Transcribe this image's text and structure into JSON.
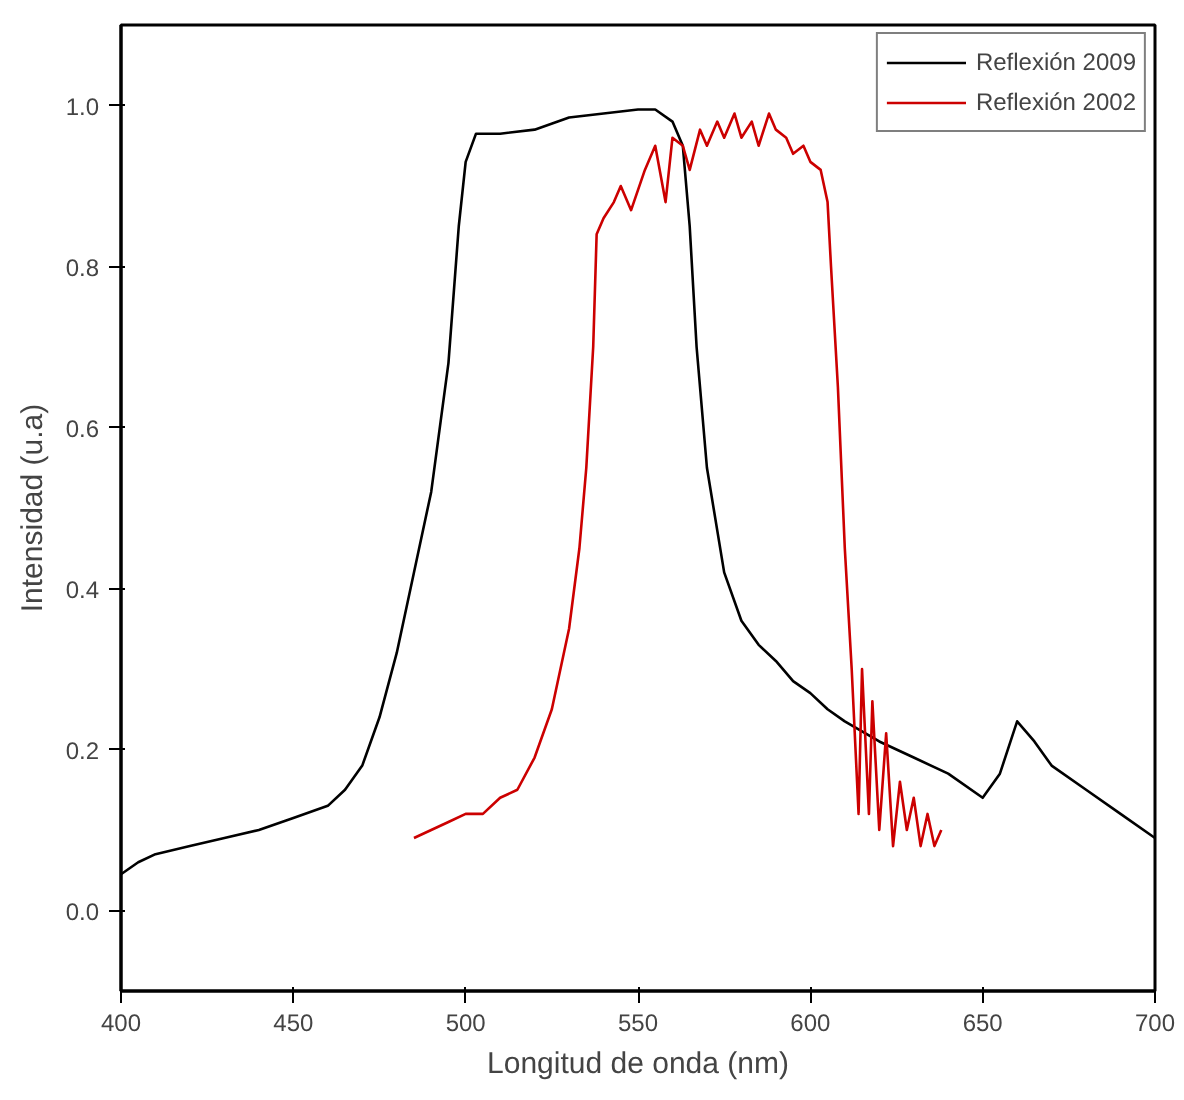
{
  "chart_data": {
    "type": "line",
    "xlabel": "Longitud de onda (nm)",
    "ylabel": "Intensidad (u.a)",
    "xlim": [
      400,
      700
    ],
    "ylim": [
      -0.1,
      1.1
    ],
    "xticks": [
      400,
      450,
      500,
      550,
      600,
      650,
      700
    ],
    "yticks": [
      {
        "value": 0,
        "label": "0.0"
      },
      {
        "value": 0.2,
        "label": "0.2"
      },
      {
        "value": 0.4,
        "label": "0.4"
      },
      {
        "value": 0.6,
        "label": "0.6"
      },
      {
        "value": 0.8,
        "label": "0.8"
      },
      {
        "value": 1,
        "label": "1.0"
      }
    ],
    "grid": false,
    "legend": "top right",
    "line_style": "solid",
    "marker": "none",
    "series": [
      {
        "name": "Reflexión 2009",
        "color": "#000000",
        "x": [
          400,
          405,
          410,
          420,
          430,
          440,
          450,
          460,
          465,
          470,
          475,
          480,
          485,
          490,
          495,
          498,
          500,
          503,
          510,
          520,
          530,
          540,
          550,
          555,
          560,
          563,
          565,
          567,
          570,
          575,
          580,
          585,
          590,
          595,
          600,
          605,
          610,
          620,
          630,
          640,
          650,
          655,
          660,
          665,
          670,
          680,
          690,
          700
        ],
        "values": [
          0.045,
          0.06,
          0.07,
          0.08,
          0.09,
          0.1,
          0.115,
          0.13,
          0.15,
          0.18,
          0.24,
          0.32,
          0.42,
          0.52,
          0.68,
          0.85,
          0.93,
          0.965,
          0.965,
          0.97,
          0.985,
          0.99,
          0.995,
          0.995,
          0.98,
          0.95,
          0.85,
          0.7,
          0.55,
          0.42,
          0.36,
          0.33,
          0.31,
          0.285,
          0.27,
          0.25,
          0.235,
          0.21,
          0.19,
          0.17,
          0.14,
          0.17,
          0.235,
          0.21,
          0.18,
          0.15,
          0.12,
          0.09
        ]
      },
      {
        "name": "Reflexión 2002",
        "color": "#cc0000",
        "x": [
          485,
          490,
          495,
          500,
          505,
          510,
          515,
          520,
          525,
          530,
          533,
          535,
          537,
          538,
          540,
          543,
          545,
          548,
          552,
          555,
          558,
          560,
          563,
          565,
          568,
          570,
          573,
          575,
          578,
          580,
          583,
          585,
          588,
          590,
          593,
          595,
          598,
          600,
          603,
          605,
          606,
          608,
          610,
          612,
          614,
          615,
          617,
          618,
          620,
          622,
          624,
          626,
          628,
          630,
          632,
          634,
          636,
          638
        ],
        "values": [
          0.09,
          0.1,
          0.11,
          0.12,
          0.12,
          0.14,
          0.15,
          0.19,
          0.25,
          0.35,
          0.45,
          0.55,
          0.7,
          0.84,
          0.86,
          0.88,
          0.9,
          0.87,
          0.92,
          0.95,
          0.88,
          0.96,
          0.95,
          0.92,
          0.97,
          0.95,
          0.98,
          0.96,
          0.99,
          0.96,
          0.98,
          0.95,
          0.99,
          0.97,
          0.96,
          0.94,
          0.95,
          0.93,
          0.92,
          0.88,
          0.8,
          0.65,
          0.45,
          0.3,
          0.12,
          0.3,
          0.12,
          0.26,
          0.1,
          0.22,
          0.08,
          0.16,
          0.1,
          0.14,
          0.08,
          0.12,
          0.08,
          0.1
        ]
      }
    ]
  }
}
